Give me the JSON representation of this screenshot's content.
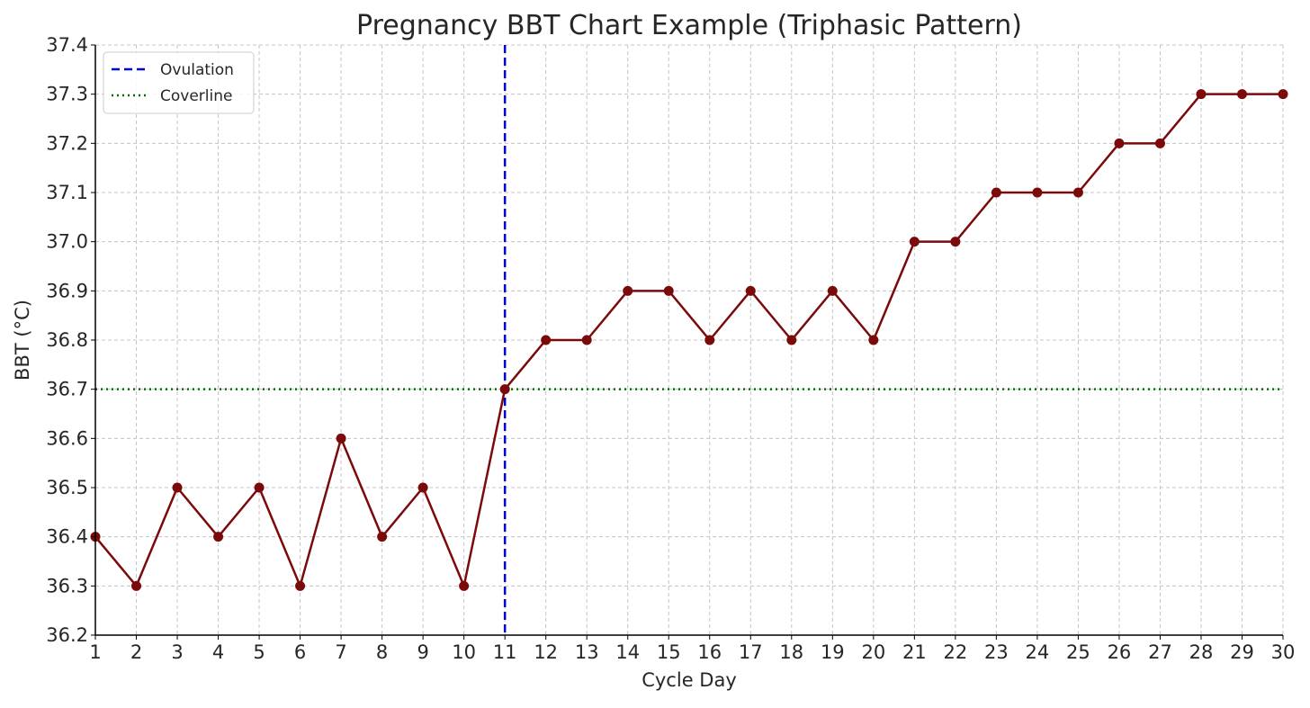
{
  "chart_data": {
    "type": "line",
    "title": "Pregnancy BBT Chart Example (Triphasic Pattern)",
    "xlabel": "Cycle Day",
    "ylabel": "BBT (°C)",
    "x": [
      1,
      2,
      3,
      4,
      5,
      6,
      7,
      8,
      9,
      10,
      11,
      12,
      13,
      14,
      15,
      16,
      17,
      18,
      19,
      20,
      21,
      22,
      23,
      24,
      25,
      26,
      27,
      28,
      29,
      30
    ],
    "xticks": [
      1,
      2,
      3,
      4,
      5,
      6,
      7,
      8,
      9,
      10,
      11,
      12,
      13,
      14,
      15,
      16,
      17,
      18,
      19,
      20,
      21,
      22,
      23,
      24,
      25,
      26,
      27,
      28,
      29,
      30
    ],
    "xlim": [
      1,
      30
    ],
    "ylim": [
      36.2,
      37.4
    ],
    "yticks": [
      36.2,
      36.3,
      36.4,
      36.5,
      36.6,
      36.7,
      36.8,
      36.9,
      37.0,
      37.1,
      37.2,
      37.3,
      37.4
    ],
    "ytick_labels": [
      "36.2",
      "36.3",
      "36.4",
      "36.5",
      "36.6",
      "36.7",
      "36.8",
      "36.9",
      "37.0",
      "37.1",
      "37.2",
      "37.3",
      "37.4"
    ],
    "grid": true,
    "legend_position": "top-left",
    "series": [
      {
        "values": [
          36.4,
          36.3,
          36.5,
          36.4,
          36.5,
          36.3,
          36.6,
          36.4,
          36.5,
          36.3,
          36.7,
          36.8,
          36.8,
          36.9,
          36.9,
          36.8,
          36.9,
          36.8,
          36.9,
          36.8,
          37.0,
          37.0,
          37.1,
          37.1,
          37.1,
          37.2,
          37.2,
          37.3,
          37.3,
          37.3
        ],
        "color": "#7b0a0a",
        "marker": "circle"
      }
    ],
    "reference_lines": [
      {
        "name": "Ovulation",
        "orientation": "vertical",
        "x": 11,
        "color": "#0000cc",
        "style": "dashed"
      },
      {
        "name": "Coverline",
        "orientation": "horizontal",
        "y": 36.7,
        "color": "#007000",
        "style": "dotted"
      }
    ]
  }
}
